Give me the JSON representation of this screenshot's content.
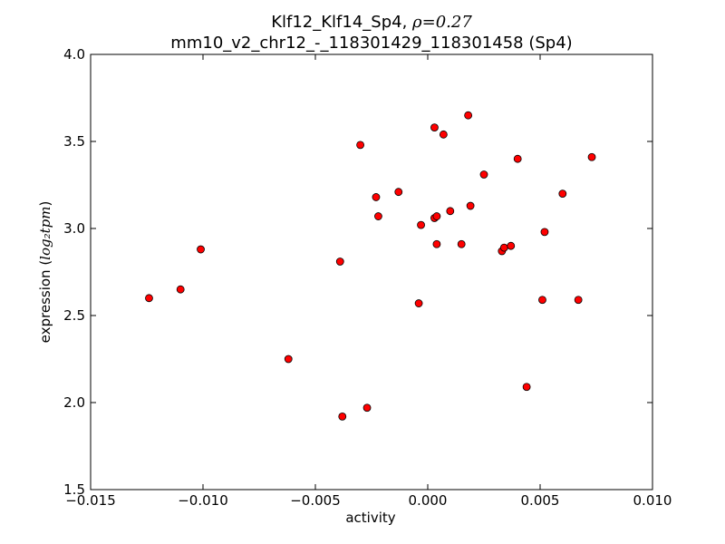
{
  "chart_data": {
    "type": "scatter",
    "title_line1_text": "Klf12_Klf14_Sp4, ",
    "title_line1_rho": "ρ=0.27",
    "title_line2": "mm10_v2_chr12_-_118301429_118301458 (Sp4)",
    "xlabel": "activity",
    "ylabel_prefix": "expression (",
    "ylabel_math": "log₂tpm",
    "ylabel_suffix": ")",
    "xlim": [
      -0.015,
      0.01
    ],
    "ylim": [
      1.5,
      4.0
    ],
    "xticks": [
      -0.015,
      -0.01,
      -0.005,
      0.0,
      0.005,
      0.01
    ],
    "xtick_labels": [
      "−0.015",
      "−0.010",
      "−0.005",
      "0.000",
      "0.005",
      "0.010"
    ],
    "yticks": [
      1.5,
      2.0,
      2.5,
      3.0,
      3.5,
      4.0
    ],
    "ytick_labels": [
      "1.5",
      "2.0",
      "2.5",
      "3.0",
      "3.5",
      "4.0"
    ],
    "marker_color": "#ff0000",
    "marker_edge": "#000000",
    "points": [
      {
        "x": -0.0124,
        "y": 2.6
      },
      {
        "x": -0.011,
        "y": 2.65
      },
      {
        "x": -0.0101,
        "y": 2.88
      },
      {
        "x": -0.0062,
        "y": 2.25
      },
      {
        "x": -0.0039,
        "y": 2.81
      },
      {
        "x": -0.0038,
        "y": 1.92
      },
      {
        "x": -0.003,
        "y": 3.48
      },
      {
        "x": -0.0027,
        "y": 1.97
      },
      {
        "x": -0.0023,
        "y": 3.18
      },
      {
        "x": -0.0022,
        "y": 3.07
      },
      {
        "x": -0.0013,
        "y": 3.21
      },
      {
        "x": -0.0004,
        "y": 2.57
      },
      {
        "x": -0.0003,
        "y": 3.02
      },
      {
        "x": 0.0003,
        "y": 3.58
      },
      {
        "x": 0.0003,
        "y": 3.06
      },
      {
        "x": 0.0004,
        "y": 3.07
      },
      {
        "x": 0.0004,
        "y": 2.91
      },
      {
        "x": 0.0007,
        "y": 3.54
      },
      {
        "x": 0.001,
        "y": 3.1
      },
      {
        "x": 0.0015,
        "y": 2.91
      },
      {
        "x": 0.0018,
        "y": 3.65
      },
      {
        "x": 0.0019,
        "y": 3.13
      },
      {
        "x": 0.0025,
        "y": 3.31
      },
      {
        "x": 0.0033,
        "y": 2.87
      },
      {
        "x": 0.0034,
        "y": 2.89
      },
      {
        "x": 0.0037,
        "y": 2.9
      },
      {
        "x": 0.004,
        "y": 3.4
      },
      {
        "x": 0.0044,
        "y": 2.09
      },
      {
        "x": 0.0051,
        "y": 2.59
      },
      {
        "x": 0.0052,
        "y": 2.98
      },
      {
        "x": 0.006,
        "y": 3.2
      },
      {
        "x": 0.0067,
        "y": 2.59
      },
      {
        "x": 0.0073,
        "y": 3.41
      }
    ]
  }
}
